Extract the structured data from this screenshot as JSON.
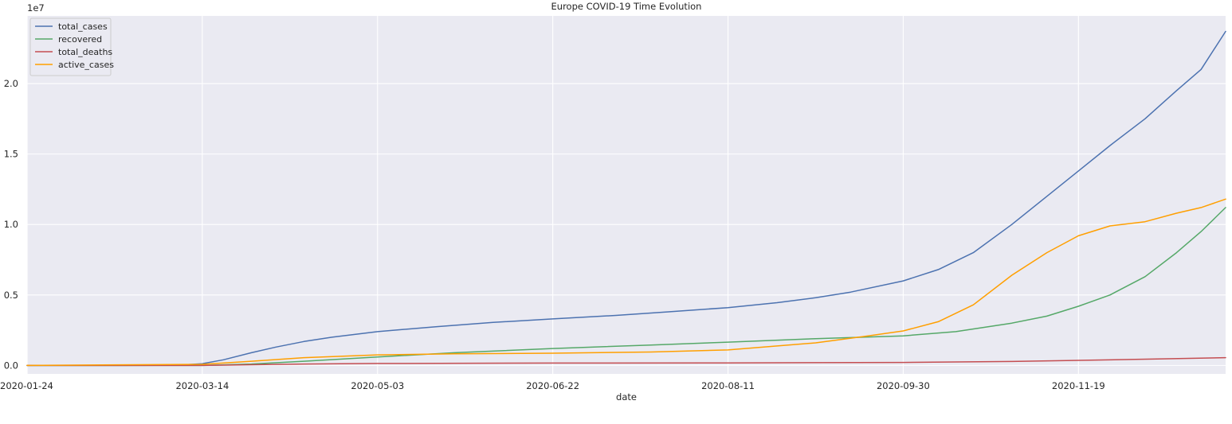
{
  "chart_data": {
    "type": "line",
    "title": "Europe COVID-19 Time Evolution",
    "xlabel": "date",
    "ylabel": "",
    "offset_label": "1e7",
    "scale_factor": 10000000,
    "x_ticks": [
      "2020-01-24",
      "2020-03-14",
      "2020-05-03",
      "2020-06-22",
      "2020-08-11",
      "2020-09-30",
      "2020-11-19"
    ],
    "y_ticks": [
      0.0,
      0.5,
      1.0,
      1.5,
      2.0
    ],
    "y_tick_labels": [
      "0.0",
      "0.5",
      "1.0",
      "1.5",
      "2.0"
    ],
    "xlim": [
      "2020-01-24",
      "2020-12-31"
    ],
    "ylim": [
      -0.06,
      2.48
    ],
    "grid": true,
    "legend_position": "upper-left",
    "series": [
      {
        "name": "total_cases",
        "color": "#4c72b0",
        "points": [
          [
            "2020-01-24",
            0.0
          ],
          [
            "2020-02-20",
            0.0
          ],
          [
            "2020-03-01",
            0.001
          ],
          [
            "2020-03-10",
            0.006
          ],
          [
            "2020-03-14",
            0.012
          ],
          [
            "2020-03-20",
            0.04
          ],
          [
            "2020-03-28",
            0.09
          ],
          [
            "2020-04-04",
            0.13
          ],
          [
            "2020-04-12",
            0.17
          ],
          [
            "2020-04-20",
            0.2
          ],
          [
            "2020-05-03",
            0.24
          ],
          [
            "2020-05-20",
            0.275
          ],
          [
            "2020-06-05",
            0.305
          ],
          [
            "2020-06-22",
            0.33
          ],
          [
            "2020-07-10",
            0.355
          ],
          [
            "2020-07-25",
            0.38
          ],
          [
            "2020-08-11",
            0.41
          ],
          [
            "2020-08-25",
            0.445
          ],
          [
            "2020-09-05",
            0.48
          ],
          [
            "2020-09-15",
            0.52
          ],
          [
            "2020-09-30",
            0.6
          ],
          [
            "2020-10-10",
            0.68
          ],
          [
            "2020-10-20",
            0.8
          ],
          [
            "2020-10-31",
            1.0
          ],
          [
            "2020-11-10",
            1.2
          ],
          [
            "2020-11-19",
            1.38
          ],
          [
            "2020-11-28",
            1.56
          ],
          [
            "2020-12-08",
            1.75
          ],
          [
            "2020-12-17",
            1.95
          ],
          [
            "2020-12-24",
            2.1
          ],
          [
            "2020-12-31",
            2.37
          ]
        ]
      },
      {
        "name": "recovered",
        "color": "#55a868",
        "points": [
          [
            "2020-01-24",
            0.0
          ],
          [
            "2020-03-14",
            0.0
          ],
          [
            "2020-03-28",
            0.01
          ],
          [
            "2020-04-12",
            0.03
          ],
          [
            "2020-05-03",
            0.06
          ],
          [
            "2020-05-25",
            0.09
          ],
          [
            "2020-06-22",
            0.12
          ],
          [
            "2020-07-20",
            0.145
          ],
          [
            "2020-08-11",
            0.165
          ],
          [
            "2020-09-05",
            0.19
          ],
          [
            "2020-09-30",
            0.21
          ],
          [
            "2020-10-15",
            0.24
          ],
          [
            "2020-10-31",
            0.3
          ],
          [
            "2020-11-10",
            0.35
          ],
          [
            "2020-11-19",
            0.42
          ],
          [
            "2020-11-28",
            0.5
          ],
          [
            "2020-12-08",
            0.63
          ],
          [
            "2020-12-17",
            0.8
          ],
          [
            "2020-12-24",
            0.95
          ],
          [
            "2020-12-31",
            1.12
          ]
        ]
      },
      {
        "name": "total_deaths",
        "color": "#c44e52",
        "points": [
          [
            "2020-01-24",
            0.0
          ],
          [
            "2020-03-14",
            0.0
          ],
          [
            "2020-03-28",
            0.005
          ],
          [
            "2020-04-12",
            0.01
          ],
          [
            "2020-05-03",
            0.014
          ],
          [
            "2020-06-22",
            0.017
          ],
          [
            "2020-08-11",
            0.018
          ],
          [
            "2020-09-30",
            0.021
          ],
          [
            "2020-10-31",
            0.028
          ],
          [
            "2020-11-19",
            0.036
          ],
          [
            "2020-12-10",
            0.045
          ],
          [
            "2020-12-31",
            0.055
          ]
        ]
      },
      {
        "name": "active_cases",
        "color": "#ff9f00",
        "points": [
          [
            "2020-01-24",
            0.0
          ],
          [
            "2020-03-14",
            0.008
          ],
          [
            "2020-03-28",
            0.03
          ],
          [
            "2020-04-12",
            0.055
          ],
          [
            "2020-05-03",
            0.075
          ],
          [
            "2020-05-25",
            0.083
          ],
          [
            "2020-06-22",
            0.087
          ],
          [
            "2020-07-20",
            0.095
          ],
          [
            "2020-08-11",
            0.11
          ],
          [
            "2020-09-05",
            0.16
          ],
          [
            "2020-09-20",
            0.21
          ],
          [
            "2020-09-30",
            0.245
          ],
          [
            "2020-10-10",
            0.31
          ],
          [
            "2020-10-20",
            0.43
          ],
          [
            "2020-10-31",
            0.64
          ],
          [
            "2020-11-10",
            0.8
          ],
          [
            "2020-11-19",
            0.92
          ],
          [
            "2020-11-28",
            0.99
          ],
          [
            "2020-12-08",
            1.02
          ],
          [
            "2020-12-17",
            1.08
          ],
          [
            "2020-12-24",
            1.12
          ],
          [
            "2020-12-31",
            1.18
          ]
        ]
      }
    ]
  }
}
